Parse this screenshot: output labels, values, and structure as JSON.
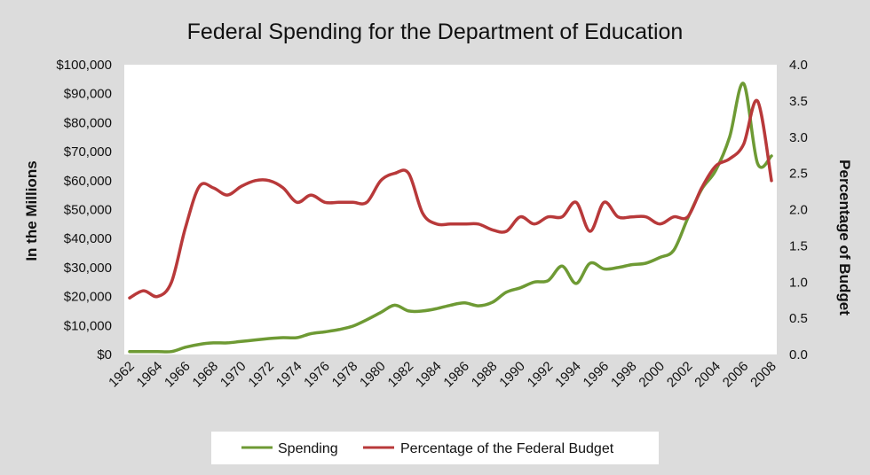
{
  "chart_data": {
    "type": "line",
    "title": "Federal Spending for the Department of Education",
    "ylabel": "In the Millions",
    "y2label": "Percentage of Budget",
    "ylim": [
      0,
      100000
    ],
    "y2lim": [
      0,
      4.0
    ],
    "xlim": [
      1962,
      2008
    ],
    "x_ticks": [
      "1962",
      "1964",
      "1966",
      "1968",
      "1970",
      "1972",
      "1974",
      "1976",
      "1978",
      "1980",
      "1982",
      "1984",
      "1986",
      "1988",
      "1990",
      "1992",
      "1994",
      "1996",
      "1998",
      "2000",
      "2002",
      "2004",
      "2006",
      "2008"
    ],
    "y_ticks": [
      "$0",
      "$10,000",
      "$20,000",
      "$30,000",
      "$40,000",
      "$50,000",
      "$60,000",
      "$70,000",
      "$80,000",
      "$90,000",
      "$100,000"
    ],
    "y2_ticks": [
      "0.0",
      "0.5",
      "1.0",
      "1.5",
      "2.0",
      "2.5",
      "3.0",
      "3.5",
      "4.0"
    ],
    "legend_placement": "bottom",
    "grid": false,
    "series": [
      {
        "name": "Spending",
        "axis": "left",
        "color": "#6e9a34",
        "x": [
          1962,
          1963,
          1964,
          1965,
          1966,
          1967,
          1968,
          1969,
          1970,
          1971,
          1972,
          1973,
          1974,
          1975,
          1976,
          1977,
          1978,
          1979,
          1980,
          1981,
          1982,
          1983,
          1984,
          1985,
          1986,
          1987,
          1988,
          1989,
          1990,
          1991,
          1992,
          1993,
          1994,
          1995,
          1996,
          1997,
          1998,
          1999,
          2000,
          2001,
          2002,
          2003,
          2004,
          2005,
          2006,
          2007,
          2008
        ],
        "y": [
          1000,
          1000,
          1000,
          1000,
          2500,
          3500,
          4000,
          4000,
          4500,
          5000,
          5500,
          5800,
          5800,
          7200,
          7800,
          8600,
          9800,
          12000,
          14500,
          17000,
          15000,
          15000,
          15800,
          17000,
          17800,
          16800,
          18000,
          21500,
          23000,
          25000,
          25500,
          30500,
          24500,
          31500,
          29500,
          30000,
          31000,
          31500,
          33500,
          36000,
          47000,
          57000,
          63500,
          75000,
          93500,
          66000,
          68500
        ]
      },
      {
        "name": "Percentage of the Federal Budget",
        "axis": "right",
        "color": "#b8393a",
        "x": [
          1962,
          1963,
          1964,
          1965,
          1966,
          1967,
          1968,
          1969,
          1970,
          1971,
          1972,
          1973,
          1974,
          1975,
          1976,
          1977,
          1978,
          1979,
          1980,
          1981,
          1982,
          1983,
          1984,
          1985,
          1986,
          1987,
          1988,
          1989,
          1990,
          1991,
          1992,
          1993,
          1994,
          1995,
          1996,
          1997,
          1998,
          1999,
          2000,
          2001,
          2002,
          2003,
          2004,
          2005,
          2006,
          2007,
          2008
        ],
        "y": [
          0.78,
          0.88,
          0.8,
          1.0,
          1.75,
          2.32,
          2.3,
          2.2,
          2.32,
          2.4,
          2.4,
          2.3,
          2.1,
          2.2,
          2.1,
          2.1,
          2.1,
          2.1,
          2.4,
          2.5,
          2.5,
          1.95,
          1.8,
          1.8,
          1.8,
          1.8,
          1.72,
          1.7,
          1.9,
          1.8,
          1.9,
          1.9,
          2.1,
          1.7,
          2.1,
          1.9,
          1.9,
          1.9,
          1.8,
          1.9,
          1.9,
          2.3,
          2.6,
          2.7,
          2.9,
          3.5,
          2.4
        ]
      }
    ]
  }
}
